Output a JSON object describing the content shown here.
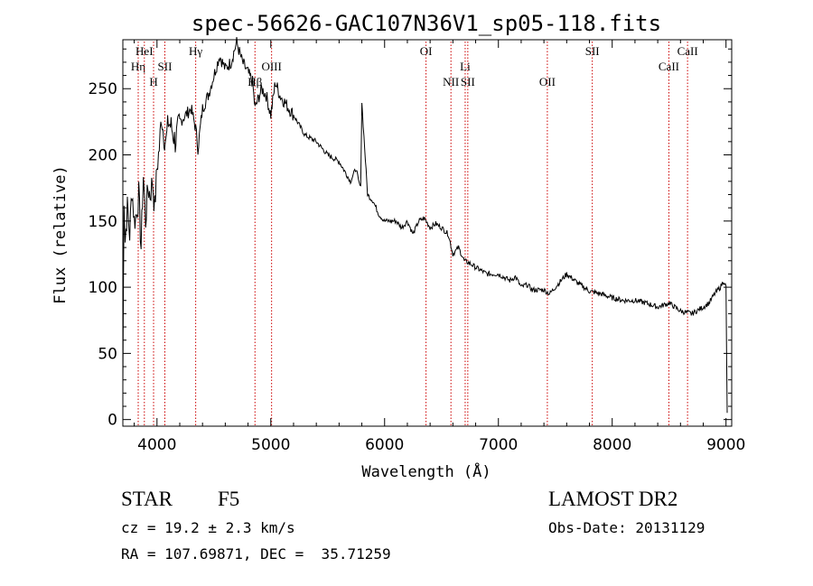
{
  "chart_data": {
    "type": "line",
    "title": "spec-56626-GAC107N36V1_sp05-118.fits",
    "xlabel": "Wavelength (Å)",
    "ylabel": "Flux (relative)",
    "xlim": [
      3700,
      9050
    ],
    "ylim": [
      -5,
      287
    ],
    "xticks": [
      4000,
      5000,
      6000,
      7000,
      8000,
      9000
    ],
    "yticks": [
      0,
      50,
      100,
      150,
      200,
      250
    ],
    "grid": false,
    "line_color": "#000000",
    "line_marker_color": "#cc0000",
    "series": [
      {
        "x": [
          3700,
          3710,
          3720,
          3740,
          3760,
          3780,
          3800,
          3820,
          3840,
          3860,
          3880,
          3900,
          3920,
          3940,
          3960,
          3980,
          4000,
          4020,
          4040,
          4060,
          4080,
          4100,
          4130,
          4160,
          4200,
          4250,
          4300,
          4340,
          4360,
          4400,
          4450,
          4500,
          4550,
          4600,
          4650,
          4700,
          4750,
          4800,
          4840,
          4861,
          4880,
          4920,
          4960,
          5000,
          5040,
          5080,
          5120,
          5200,
          5300,
          5400,
          5500,
          5600,
          5700,
          5750,
          5770,
          5790,
          5800,
          5850,
          5900,
          5950,
          6000,
          6050,
          6100,
          6150,
          6200,
          6250,
          6300,
          6350,
          6400,
          6450,
          6500,
          6560,
          6600,
          6650,
          6700,
          6750,
          6800,
          6900,
          7000,
          7100,
          7150,
          7200,
          7250,
          7300,
          7400,
          7450,
          7500,
          7550,
          7600,
          7700,
          7800,
          7900,
          8000,
          8100,
          8200,
          8300,
          8400,
          8500,
          8600,
          8700,
          8800,
          8850,
          8900,
          8950,
          8980,
          9000,
          9010
        ],
        "y": [
          25,
          170,
          135,
          160,
          140,
          175,
          150,
          155,
          170,
          130,
          185,
          150,
          175,
          170,
          180,
          160,
          190,
          205,
          230,
          215,
          210,
          225,
          220,
          210,
          225,
          230,
          235,
          220,
          205,
          235,
          245,
          260,
          275,
          265,
          270,
          285,
          270,
          262,
          255,
          235,
          240,
          250,
          245,
          230,
          255,
          245,
          240,
          230,
          215,
          210,
          200,
          195,
          180,
          190,
          180,
          175,
          240,
          170,
          165,
          155,
          150,
          150,
          150,
          145,
          150,
          140,
          150,
          152,
          145,
          148,
          145,
          140,
          125,
          130,
          120,
          118,
          115,
          110,
          110,
          105,
          108,
          100,
          102,
          98,
          98,
          95,
          100,
          105,
          110,
          103,
          97,
          95,
          92,
          90,
          90,
          88,
          85,
          88,
          82,
          80,
          85,
          88,
          95,
          100,
          105,
          100,
          5
        ]
      }
    ],
    "line_markers": [
      {
        "label": "Hη",
        "x": 3835,
        "row": 2
      },
      {
        "label": "HeI",
        "x": 3889,
        "row": 1
      },
      {
        "label": "H",
        "x": 3970,
        "row": 3
      },
      {
        "label": "SII",
        "x": 4069,
        "row": 2
      },
      {
        "label": "Hγ",
        "x": 4340,
        "row": 1
      },
      {
        "label": "Hβ",
        "x": 4861,
        "row": 3
      },
      {
        "label": "OIII",
        "x": 5007,
        "row": 2
      },
      {
        "label": "OI",
        "x": 6364,
        "row": 1
      },
      {
        "label": "NII",
        "x": 6583,
        "row": 3
      },
      {
        "label": "Li",
        "x": 6708,
        "row": 2
      },
      {
        "label": "SII",
        "x": 6731,
        "row": 3
      },
      {
        "label": "OII",
        "x": 7430,
        "row": 3
      },
      {
        "label": "SII",
        "x": 7825,
        "row": 1
      },
      {
        "label": "CaII",
        "x": 8498,
        "row": 2
      },
      {
        "label": "CaII",
        "x": 8662,
        "row": 1
      }
    ]
  },
  "info": {
    "object_type": "STAR",
    "subclass": "F5",
    "survey": "LAMOST DR2",
    "redshift_line": "cz = 19.2 ± 2.3 km/s",
    "obs_date_line": "Obs-Date: 20131129",
    "coords_line": "RA = 107.69871, DEC =  35.71259"
  }
}
